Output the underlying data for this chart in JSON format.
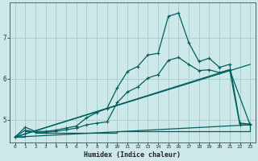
{
  "xlabel": "Humidex (Indice chaleur)",
  "bg_color": "#cce8e8",
  "grid_color": "#aacfcf",
  "line_color": "#006060",
  "xlim": [
    -0.5,
    23.5
  ],
  "ylim": [
    4.45,
    7.85
  ],
  "yticks": [
    5,
    6,
    7
  ],
  "xticks": [
    0,
    1,
    2,
    3,
    4,
    5,
    6,
    7,
    8,
    9,
    10,
    11,
    12,
    13,
    14,
    15,
    16,
    17,
    18,
    19,
    20,
    21,
    22,
    23
  ],
  "line1_x": [
    0,
    1,
    2,
    3,
    4,
    5,
    6,
    7,
    8,
    9,
    10,
    11,
    12,
    13,
    14,
    15,
    16,
    17,
    18,
    19,
    20,
    21,
    22,
    23
  ],
  "line1_y": [
    4.58,
    4.82,
    4.72,
    4.72,
    4.75,
    4.8,
    4.85,
    5.05,
    5.18,
    5.28,
    5.78,
    6.18,
    6.3,
    6.58,
    6.62,
    7.52,
    7.6,
    6.88,
    6.42,
    6.5,
    6.28,
    6.35,
    4.92,
    4.9
  ],
  "line2_x": [
    0,
    1,
    2,
    3,
    4,
    5,
    6,
    7,
    8,
    9,
    10,
    11,
    12,
    13,
    14,
    15,
    16,
    17,
    18,
    19,
    20,
    21,
    22,
    23
  ],
  "line2_y": [
    4.58,
    4.75,
    4.7,
    4.7,
    4.72,
    4.76,
    4.8,
    4.88,
    4.92,
    4.95,
    5.42,
    5.68,
    5.8,
    6.02,
    6.1,
    6.45,
    6.52,
    6.35,
    6.2,
    6.22,
    6.15,
    6.22,
    4.88,
    4.88
  ],
  "line3_x": [
    0,
    23
  ],
  "line3_y": [
    4.58,
    6.35
  ],
  "line4_x": [
    0,
    21,
    23
  ],
  "line4_y": [
    4.58,
    6.22,
    4.88
  ],
  "line5_x": [
    0,
    23
  ],
  "line5_y": [
    4.58,
    4.88
  ],
  "flat_line_x": [
    0,
    1,
    2,
    3,
    4,
    10,
    11,
    12,
    13,
    14,
    15,
    16,
    17,
    18,
    19,
    20,
    21,
    22,
    23
  ],
  "flat_line_y": [
    4.58,
    4.72,
    4.68,
    4.68,
    4.68,
    4.72,
    4.72,
    4.72,
    4.72,
    4.72,
    4.72,
    4.72,
    4.72,
    4.72,
    4.72,
    4.72,
    4.72,
    4.72,
    4.85
  ]
}
